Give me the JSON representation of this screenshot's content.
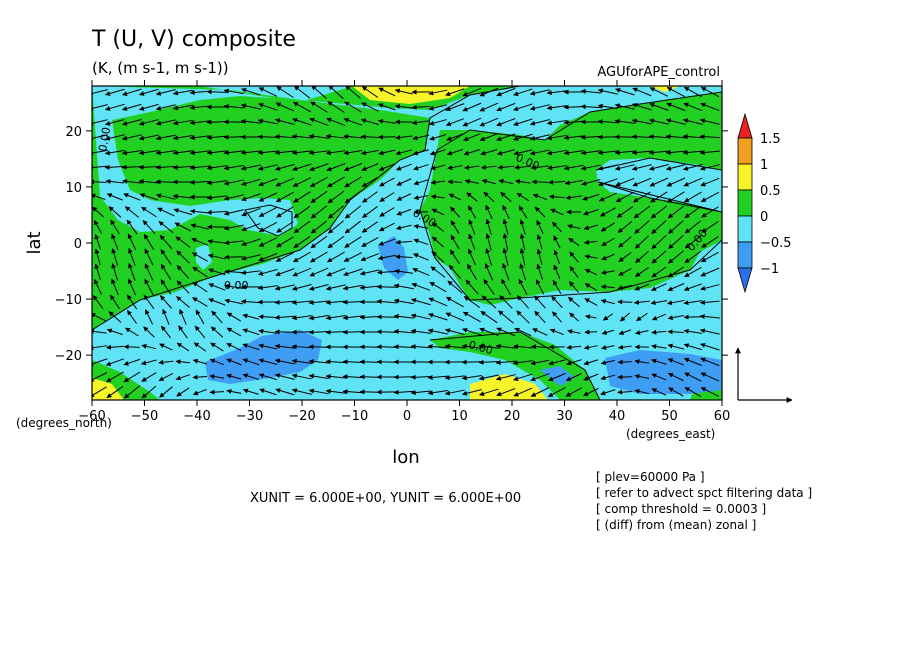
{
  "title": "T (U, V) composite",
  "units": "(K, (m s-1, m s-1))",
  "dataset": "AGUforAPE_control",
  "xlabel": "lon",
  "ylabel": "lat",
  "x_units_label": "(degrees_east)",
  "y_units_label": "(degrees_north)",
  "vector_scale_text": "XUNIT = 6.000E+00, YUNIT = 6.000E+00",
  "notes": [
    "[ plev=60000 Pa ]",
    "[ refer to advect spct filtering data ]",
    "[ comp threshold = 0.0003 ]",
    "[ (diff) from (mean) zonal ]"
  ],
  "contour_label": "0.00",
  "colors": {
    "lt_m1": "#2a6fe8",
    "m1_to_m05": "#3f9ef4",
    "m05_to_0": "#5fe3f5",
    "0_to_05": "#22d022",
    "05_to_1": "#f7f42a",
    "1_to_15": "#f2a020",
    "gt_15": "#e8221e"
  },
  "chart_data": {
    "type": "heatmap",
    "title": "T (U, V) composite",
    "xlabel": "lon",
    "ylabel": "lat",
    "xlim": [
      -60,
      60
    ],
    "ylim": [
      -28,
      28
    ],
    "x_ticks": [
      -60,
      -50,
      -40,
      -30,
      -20,
      -10,
      0,
      10,
      20,
      30,
      40,
      50,
      60
    ],
    "y_ticks": [
      -20,
      -10,
      0,
      10,
      20
    ],
    "colorbar": {
      "levels": [
        -1,
        -0.5,
        0,
        0.5,
        1,
        1.5
      ],
      "labels": [
        "−1",
        "−0.5",
        "0",
        "0.5",
        "1",
        "1.5"
      ]
    },
    "grid": false,
    "overlay": "wind vectors (U, V)"
  }
}
